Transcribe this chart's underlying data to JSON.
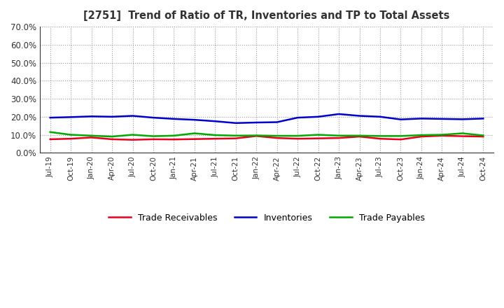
{
  "title": "[2751]  Trend of Ratio of TR, Inventories and TP to Total Assets",
  "x_labels": [
    "Jul-19",
    "Oct-19",
    "Jan-20",
    "Apr-20",
    "Jul-20",
    "Oct-20",
    "Jan-21",
    "Apr-21",
    "Jul-21",
    "Oct-21",
    "Jan-22",
    "Apr-22",
    "Jul-22",
    "Oct-22",
    "Jan-23",
    "Apr-23",
    "Jul-23",
    "Oct-23",
    "Jan-24",
    "Apr-24",
    "Jul-24",
    "Oct-24"
  ],
  "trade_receivables": [
    0.075,
    0.078,
    0.085,
    0.075,
    0.072,
    0.075,
    0.074,
    0.076,
    0.078,
    0.08,
    0.093,
    0.082,
    0.078,
    0.08,
    0.082,
    0.09,
    0.078,
    0.074,
    0.09,
    0.095,
    0.092,
    0.09
  ],
  "inventories": [
    0.195,
    0.198,
    0.202,
    0.2,
    0.205,
    0.195,
    0.188,
    0.183,
    0.175,
    0.165,
    0.168,
    0.17,
    0.195,
    0.2,
    0.215,
    0.205,
    0.2,
    0.185,
    0.19,
    0.188,
    0.186,
    0.19
  ],
  "trade_payables": [
    0.115,
    0.1,
    0.095,
    0.09,
    0.1,
    0.092,
    0.095,
    0.108,
    0.098,
    0.095,
    0.096,
    0.094,
    0.094,
    0.1,
    0.095,
    0.095,
    0.093,
    0.093,
    0.098,
    0.1,
    0.108,
    0.096
  ],
  "colors": {
    "trade_receivables": "#e8001c",
    "inventories": "#0000cc",
    "trade_payables": "#00aa00"
  },
  "legend_labels": [
    "Trade Receivables",
    "Inventories",
    "Trade Payables"
  ],
  "ylim": [
    0.0,
    0.7
  ],
  "yticks": [
    0.0,
    0.1,
    0.2,
    0.3,
    0.4,
    0.5,
    0.6,
    0.7
  ],
  "background_color": "#ffffff",
  "grid_color": "#999999",
  "title_color": "#333333"
}
